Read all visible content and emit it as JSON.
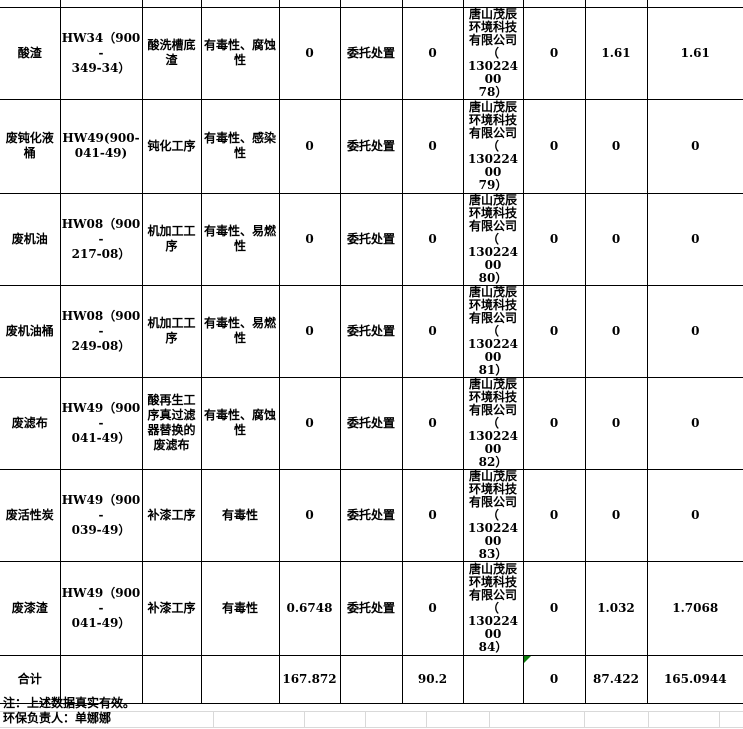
{
  "page": {
    "background_color": "#ffffff",
    "table_border_color": "#000000",
    "faint_grid_color": "#d9d9d9",
    "error_indicator_color": "#0a7d0a"
  },
  "table": {
    "rows": [
      [
        "酸渣",
        "HW34（900-\n349-34）",
        "酸洗槽底渣",
        "有毒性、腐蚀性",
        "0",
        "委托处置",
        "0",
        "唐山茂辰环境科技有限公司\n（\n13022400\n78）",
        "0",
        "1.61",
        "1.61"
      ],
      [
        "废钝化液桶",
        "HW49(900-\n041-49)",
        "钝化工序",
        "有毒性、感染性",
        "0",
        "委托处置",
        "0",
        "唐山茂辰环境科技有限公司\n（\n13022400\n79）",
        "0",
        "0",
        "0"
      ],
      [
        "废机油",
        "HW08（900-\n217-08）",
        "机加工工序",
        "有毒性、易燃性",
        "0",
        "委托处置",
        "0",
        "唐山茂辰环境科技有限公司\n（\n13022400\n80）",
        "0",
        "0",
        "0"
      ],
      [
        "废机油桶",
        "HW08（900-\n249-08）",
        "机加工工序",
        "有毒性、易燃性",
        "0",
        "委托处置",
        "0",
        "唐山茂辰环境科技有限公司\n（\n13022400\n81）",
        "0",
        "0",
        "0"
      ],
      [
        "废滤布",
        "HW49（900-\n041-49）",
        "酸再生工序真过滤器替换的废滤布",
        "有毒性、腐蚀性",
        "0",
        "委托处置",
        "0",
        "唐山茂辰环境科技有限公司\n（\n13022400\n82）",
        "0",
        "0",
        "0"
      ],
      [
        "废活性炭",
        "HW49（900-\n039-49）",
        "补漆工序",
        "有毒性",
        "0",
        "委托处置",
        "0",
        "唐山茂辰环境科技有限公司\n（\n13022400\n83）",
        "0",
        "0",
        "0"
      ],
      [
        "废漆渣",
        "HW49（900-\n041-49）",
        "补漆工序",
        "有毒性",
        "0.6748",
        "委托处置",
        "0",
        "唐山茂辰环境科技有限公司\n（\n13022400\n84）",
        "0",
        "1.032",
        "1.7068"
      ]
    ],
    "total": [
      "合计",
      "",
      "",
      "",
      "167.872",
      "",
      "90.2",
      "",
      "0",
      "87.422",
      "165.0944"
    ]
  },
  "footer": {
    "note": "注：上述数据真实有效。",
    "signature": "环保负责人：单娜娜"
  }
}
